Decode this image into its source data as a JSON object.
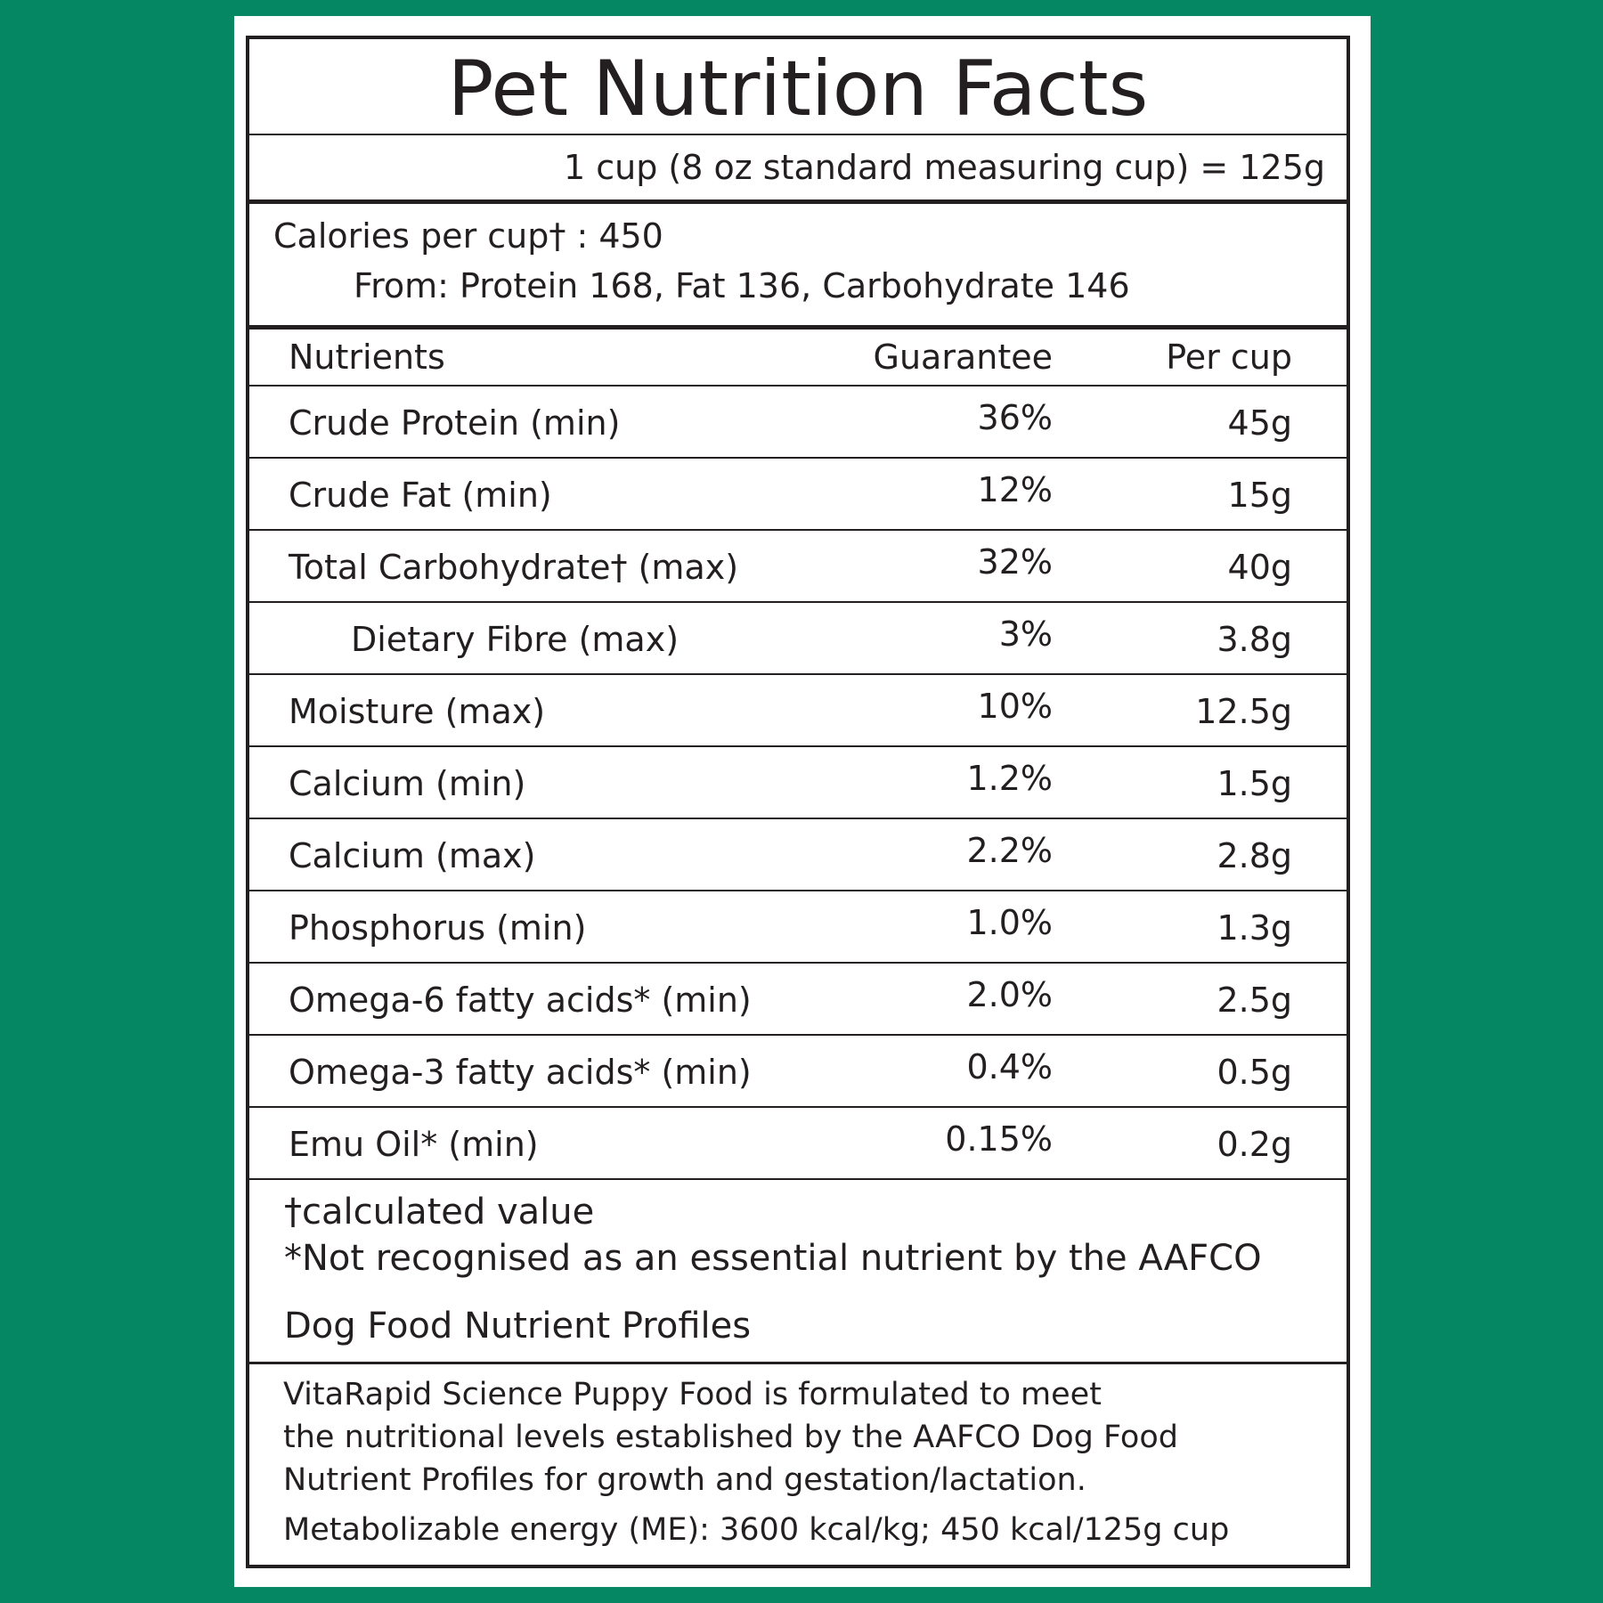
{
  "label": {
    "title": "Pet Nutrition Facts",
    "serving": "1 cup (8 oz standard measuring cup) = 125g",
    "calories_line": "Calories per cup† : 450",
    "calories_from": "From: Protein 168, Fat 136, Carbohydrate 146",
    "headers": {
      "nutrients": "Nutrients",
      "guarantee": "Guarantee",
      "per_cup": "Per cup"
    },
    "rows": [
      {
        "name": "Crude Protein (min)",
        "guarantee": "36%",
        "per_cup": "45g"
      },
      {
        "name": "Crude Fat (min)",
        "guarantee": "12%",
        "per_cup": "15g"
      },
      {
        "name": "Total Carbohydrate† (max)",
        "guarantee": "32%",
        "per_cup": "40g"
      },
      {
        "name": "Dietary Fibre (max)",
        "guarantee": "3%",
        "per_cup": "3.8g"
      },
      {
        "name": "Moisture (max)",
        "guarantee": "10%",
        "per_cup": "12.5g"
      },
      {
        "name": "Calcium (min)",
        "guarantee": "1.2%",
        "per_cup": "1.5g"
      },
      {
        "name": "Calcium (max)",
        "guarantee": "2.2%",
        "per_cup": "2.8g"
      },
      {
        "name": "Phosphorus (min)",
        "guarantee": "1.0%",
        "per_cup": "1.3g"
      },
      {
        "name": "Omega-6 fatty acids* (min)",
        "guarantee": "2.0%",
        "per_cup": "2.5g"
      },
      {
        "name": "Omega-3 fatty acids* (min)",
        "guarantee": "0.4%",
        "per_cup": "0.5g"
      },
      {
        "name": "Emu Oil* (min)",
        "guarantee": "0.15%",
        "per_cup": "0.2g"
      }
    ],
    "notes": [
      "†calculated value",
      "*Not recognised as an essential nutrient by the AAFCO",
      "Dog Food Nutrient Profiles"
    ],
    "statement": [
      "VitaRapid Science Puppy Food is formulated to meet",
      "the nutritional levels established by the AAFCO Dog Food",
      "Nutrient Profiles for growth and gestation/lactation.",
      "Metabolizable energy (ME): 3600 kcal/kg; 450 kcal/125g cup"
    ]
  },
  "colors": {
    "background": "#048762",
    "card": "#ffffff",
    "ink": "#231f20"
  }
}
